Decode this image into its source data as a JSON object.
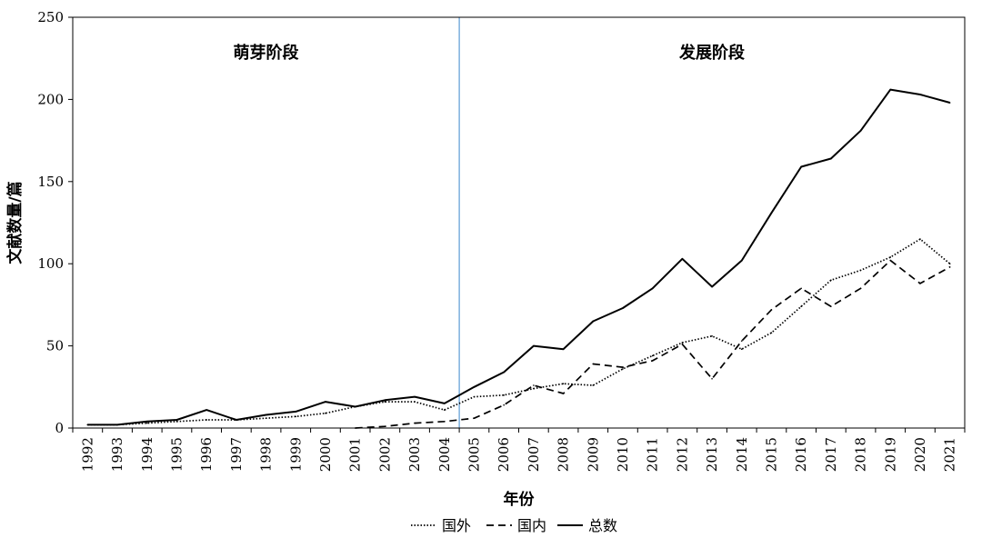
{
  "chart_data": {
    "type": "line",
    "xlabel": "年份",
    "ylabel": "文献数量/篇",
    "ylim": [
      0,
      250
    ],
    "yticks": [
      0,
      50,
      100,
      150,
      200,
      250
    ],
    "categories": [
      "1992",
      "1993",
      "1994",
      "1995",
      "1996",
      "1997",
      "1998",
      "1999",
      "2000",
      "2001",
      "2002",
      "2003",
      "2004",
      "2005",
      "2006",
      "2007",
      "2008",
      "2009",
      "2010",
      "2011",
      "2012",
      "2013",
      "2014",
      "2015",
      "2016",
      "2017",
      "2018",
      "2019",
      "2020",
      "2021"
    ],
    "phases": [
      {
        "label": "萌芽阶段"
      },
      {
        "label": "发展阶段"
      }
    ],
    "divider_between": [
      "2004",
      "2005"
    ],
    "divider_color": "#5b9bd5",
    "legend_position": "bottom-center",
    "series": [
      {
        "name": "国外",
        "style": "dotted",
        "color": "#000000",
        "values": [
          2,
          2,
          3,
          4,
          5,
          5,
          6,
          7,
          9,
          13,
          16,
          16,
          11,
          19,
          20,
          24,
          27,
          26,
          36,
          44,
          52,
          56,
          48,
          58,
          74,
          90,
          96,
          104,
          115,
          100
        ]
      },
      {
        "name": "国内",
        "style": "dashed",
        "color": "#000000",
        "values": [
          null,
          null,
          null,
          null,
          null,
          null,
          null,
          null,
          null,
          0,
          1,
          3,
          4,
          6,
          14,
          26,
          21,
          39,
          37,
          41,
          51,
          30,
          53,
          72,
          85,
          74,
          85,
          102,
          88,
          98
        ]
      },
      {
        "name": "总数",
        "style": "solid",
        "color": "#000000",
        "values": [
          2,
          2,
          4,
          5,
          11,
          5,
          8,
          10,
          16,
          13,
          17,
          19,
          15,
          25,
          34,
          50,
          48,
          65,
          73,
          85,
          103,
          86,
          102,
          131,
          159,
          164,
          181,
          206,
          203,
          198
        ]
      }
    ]
  }
}
